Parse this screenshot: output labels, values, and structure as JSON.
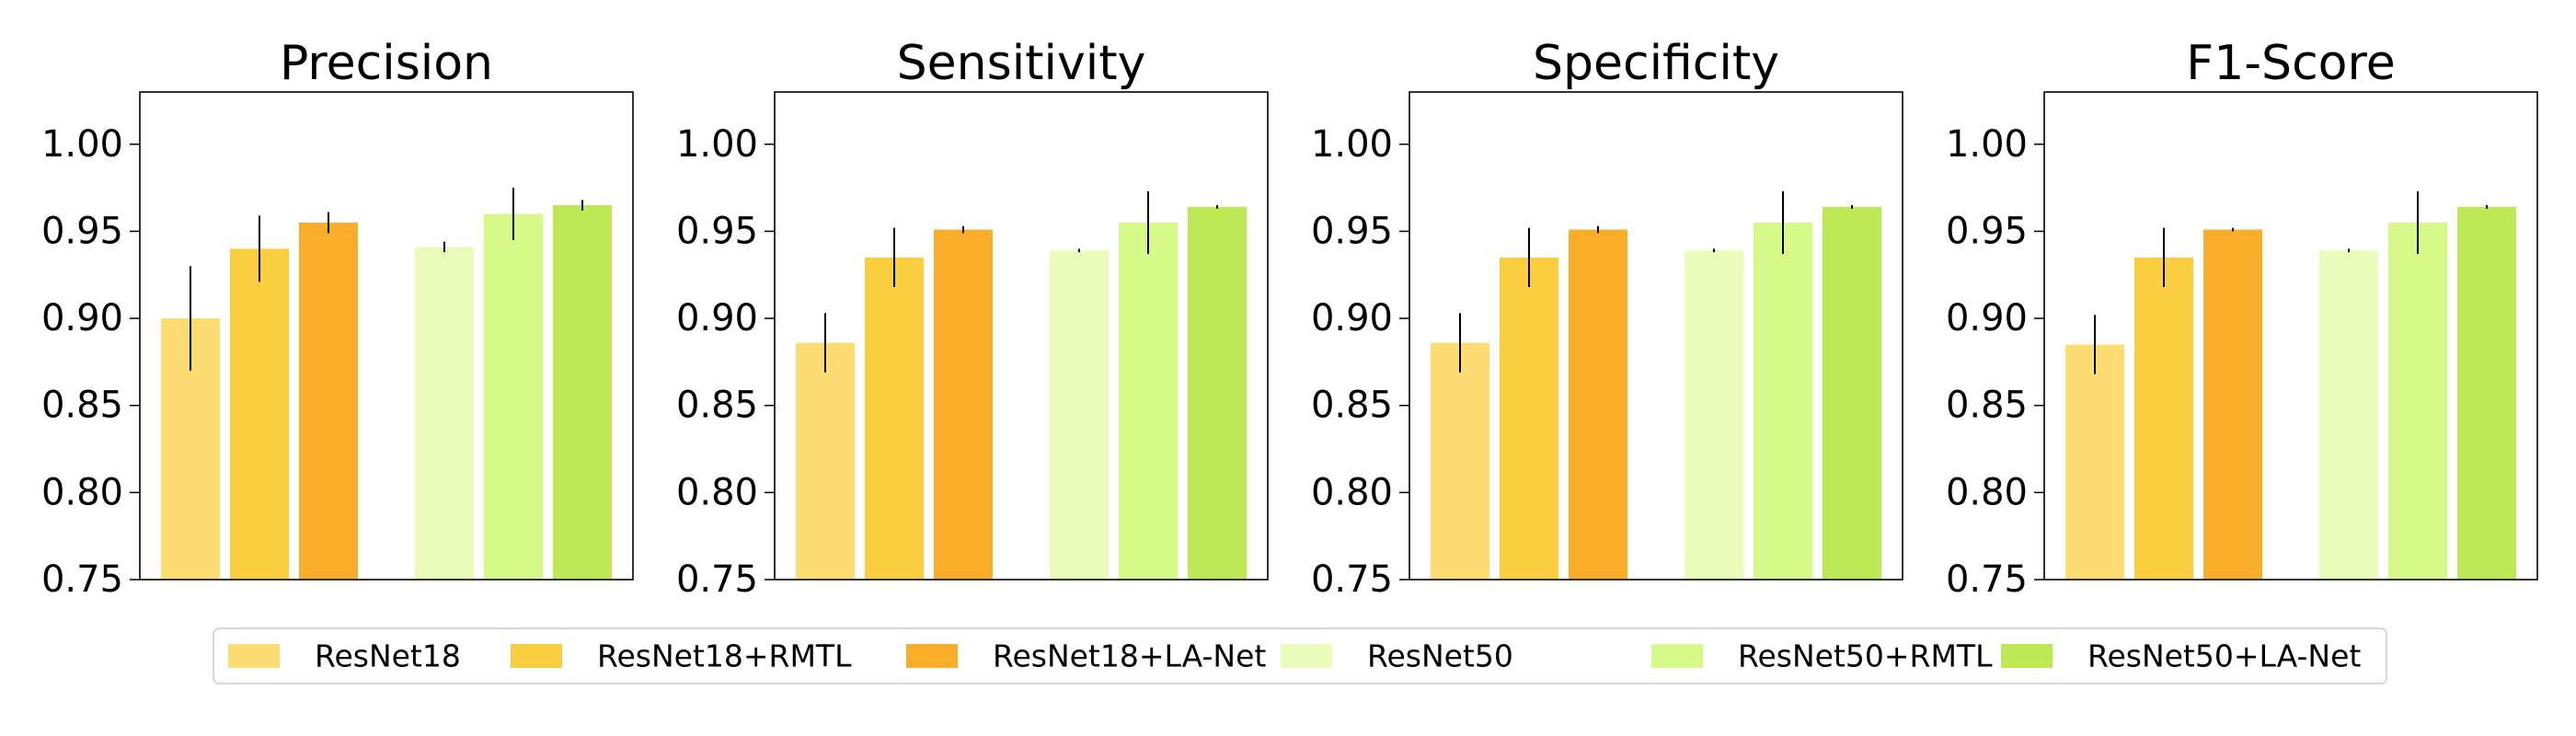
{
  "chart_data": {
    "type": "bar",
    "legend": {
      "placement": "bottom",
      "entries": [
        {
          "label": "ResNet18",
          "color": "#FDDC74"
        },
        {
          "label": "ResNet18+RMTL",
          "color": "#FBCD40"
        },
        {
          "label": "ResNet18+LA-Net",
          "color": "#F9AD2A"
        },
        {
          "label": "ResNet50",
          "color": "#EBFCBA"
        },
        {
          "label": "ResNet50+RMTL",
          "color": "#D6F98A"
        },
        {
          "label": "ResNet50+LA-Net",
          "color": "#BDE955"
        }
      ]
    },
    "panels": [
      {
        "title": "Precision",
        "ylim": [
          0.75,
          1.03
        ],
        "yticks": [
          "0.75",
          "0.80",
          "0.85",
          "0.90",
          "0.95",
          "1.00"
        ],
        "values": [
          0.9,
          0.94,
          0.955,
          0.941,
          0.96,
          0.965
        ],
        "errors": [
          0.03,
          0.019,
          0.006,
          0.003,
          0.015,
          0.003
        ]
      },
      {
        "title": "Sensitivity",
        "ylim": [
          0.75,
          1.03
        ],
        "yticks": [
          "0.75",
          "0.80",
          "0.85",
          "0.90",
          "0.95",
          "1.00"
        ],
        "values": [
          0.886,
          0.935,
          0.951,
          0.939,
          0.955,
          0.964
        ],
        "errors": [
          0.017,
          0.017,
          0.002,
          0.001,
          0.018,
          0.001
        ]
      },
      {
        "title": "Specificity",
        "ylim": [
          0.75,
          1.03
        ],
        "yticks": [
          "0.75",
          "0.80",
          "0.85",
          "0.90",
          "0.95",
          "1.00"
        ],
        "values": [
          0.886,
          0.935,
          0.951,
          0.939,
          0.955,
          0.964
        ],
        "errors": [
          0.017,
          0.017,
          0.002,
          0.001,
          0.018,
          0.001
        ]
      },
      {
        "title": "F1-Score",
        "ylim": [
          0.75,
          1.03
        ],
        "yticks": [
          "0.75",
          "0.80",
          "0.85",
          "0.90",
          "0.95",
          "1.00"
        ],
        "values": [
          0.885,
          0.935,
          0.951,
          0.939,
          0.955,
          0.964
        ],
        "errors": [
          0.017,
          0.017,
          0.001,
          0.001,
          0.018,
          0.001
        ]
      }
    ]
  }
}
